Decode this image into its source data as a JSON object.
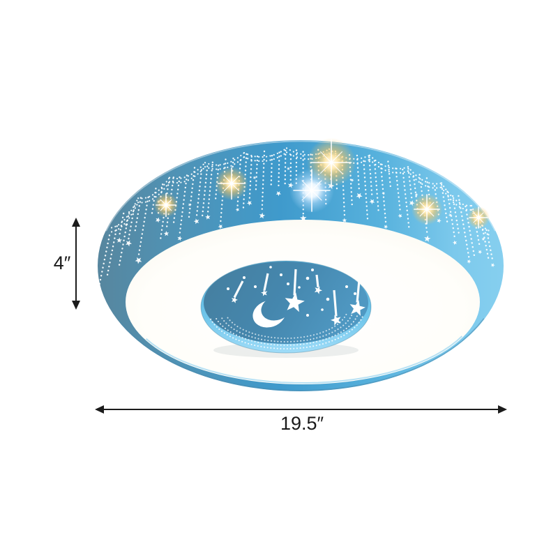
{
  "page": {
    "background_color": "#ffffff"
  },
  "product_image": {
    "description": "Blue drum flush-mount ceiling light with hollowed-out star garland pattern, glowing white diffuser ring and a center medallion pierced with a crescent moon and shooting stars",
    "colors": {
      "drum_left": "#57869e",
      "drum_center": "#3f9acc",
      "drum_right": "#86cfef",
      "diffuser_white": "#fffefa",
      "medallion_face": "#47809f",
      "medallion_rim": "#9fdcf8",
      "bottom_rim": "#5ea4c6",
      "sparkle_warm": "#ffc95e",
      "sparkle_cool": "#ffffff",
      "cutout": "#ffffff"
    }
  },
  "annotations": {
    "color": "#1b1b1b",
    "height": {
      "label": "4″"
    },
    "width": {
      "label": "19.5″"
    }
  }
}
